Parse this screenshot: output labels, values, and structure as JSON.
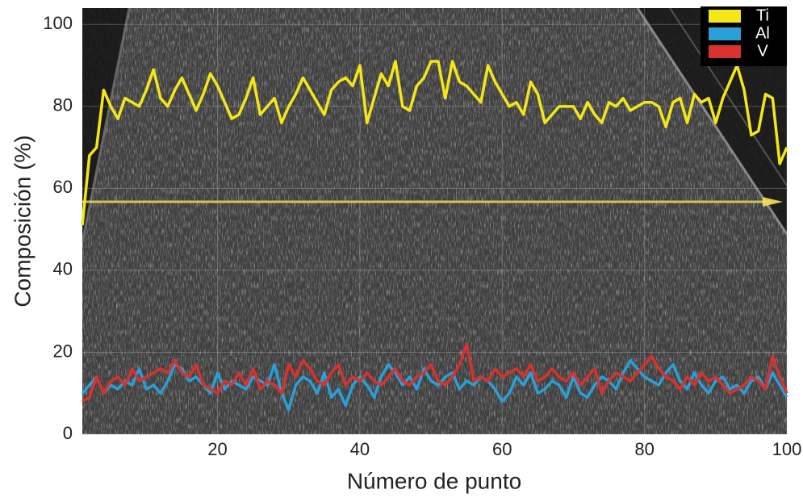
{
  "chart_data": {
    "type": "line",
    "x_label": "Número de punto",
    "y_label": "Composición (%)",
    "x": [
      1,
      2,
      3,
      4,
      5,
      6,
      7,
      8,
      9,
      10,
      11,
      12,
      13,
      14,
      15,
      16,
      17,
      18,
      19,
      20,
      21,
      22,
      23,
      24,
      25,
      26,
      27,
      28,
      29,
      30,
      31,
      32,
      33,
      34,
      35,
      36,
      37,
      38,
      39,
      40,
      41,
      42,
      43,
      44,
      45,
      46,
      47,
      48,
      49,
      50,
      51,
      52,
      53,
      54,
      55,
      56,
      57,
      58,
      59,
      60,
      61,
      62,
      63,
      64,
      65,
      66,
      67,
      68,
      69,
      70,
      71,
      72,
      73,
      74,
      75,
      76,
      77,
      78,
      79,
      80,
      81,
      82,
      83,
      84,
      85,
      86,
      87,
      88,
      89,
      90,
      91,
      92,
      93,
      94,
      95,
      96,
      97,
      98,
      99,
      100
    ],
    "series": [
      {
        "name": "Ti",
        "color": "#f5e617",
        "values": [
          51,
          68,
          70,
          84,
          80,
          77,
          82,
          81,
          80,
          84,
          89,
          82,
          80,
          84,
          87,
          83,
          79,
          83,
          88,
          85,
          81,
          77,
          78,
          82,
          87,
          78,
          80,
          82,
          76,
          80,
          83,
          87,
          84,
          81,
          78,
          84,
          86,
          87,
          85,
          90,
          76,
          82,
          88,
          85,
          91,
          80,
          79,
          85,
          87,
          91,
          91,
          82,
          91,
          86,
          85,
          83,
          81,
          90,
          86,
          83,
          80,
          81,
          78,
          86,
          83,
          76,
          78,
          80,
          80,
          80,
          77,
          81,
          78,
          76,
          81,
          80,
          82,
          79,
          80,
          81,
          81,
          80,
          75,
          81,
          82,
          76,
          83,
          81,
          82,
          76,
          82,
          86,
          90,
          84,
          73,
          74,
          83,
          82,
          66,
          70
        ]
      },
      {
        "name": "Al",
        "color": "#2a9fd8",
        "values": [
          10,
          12,
          14,
          10,
          12,
          11,
          13,
          12,
          16,
          11,
          12,
          10,
          13,
          17,
          16,
          13,
          14,
          12,
          10,
          15,
          11,
          13,
          12,
          11,
          14,
          13,
          12,
          17,
          10,
          6,
          12,
          14,
          13,
          10,
          15,
          9,
          11,
          7,
          12,
          14,
          12,
          9,
          14,
          17,
          15,
          12,
          14,
          11,
          16,
          13,
          12,
          14,
          15,
          11,
          13,
          12,
          14,
          13,
          11,
          8,
          10,
          14,
          12,
          15,
          10,
          11,
          13,
          12,
          9,
          14,
          10,
          9,
          12,
          14,
          13,
          11,
          15,
          18,
          16,
          14,
          13,
          12,
          15,
          17,
          13,
          11,
          15,
          12,
          10,
          13,
          14,
          11,
          12,
          10,
          13,
          14,
          11,
          15,
          12,
          9
        ]
      },
      {
        "name": "V",
        "color": "#d9322e",
        "values": [
          8,
          9,
          14,
          10,
          13,
          14,
          12,
          16,
          13,
          14,
          15,
          16,
          15,
          18,
          15,
          14,
          17,
          12,
          11,
          10,
          13,
          12,
          15,
          12,
          16,
          11,
          13,
          12,
          10,
          17,
          14,
          18,
          16,
          13,
          12,
          15,
          17,
          12,
          14,
          13,
          15,
          13,
          12,
          14,
          16,
          13,
          12,
          14,
          15,
          17,
          13,
          12,
          14,
          17,
          22,
          13,
          14,
          13,
          16,
          14,
          15,
          16,
          14,
          17,
          13,
          14,
          16,
          14,
          13,
          15,
          12,
          14,
          16,
          10,
          13,
          15,
          14,
          13,
          15,
          17,
          19,
          16,
          14,
          13,
          11,
          14,
          12,
          15,
          13,
          14,
          12,
          10,
          11,
          12,
          14,
          13,
          11,
          19,
          14,
          10
        ]
      }
    ],
    "xlim": [
      1,
      100
    ],
    "ylim": [
      0,
      104
    ],
    "xticks": [
      20,
      40,
      60,
      80,
      100
    ],
    "yticks": [
      0,
      20,
      40,
      60,
      80,
      100
    ],
    "grid": true,
    "legend": "top-right"
  }
}
